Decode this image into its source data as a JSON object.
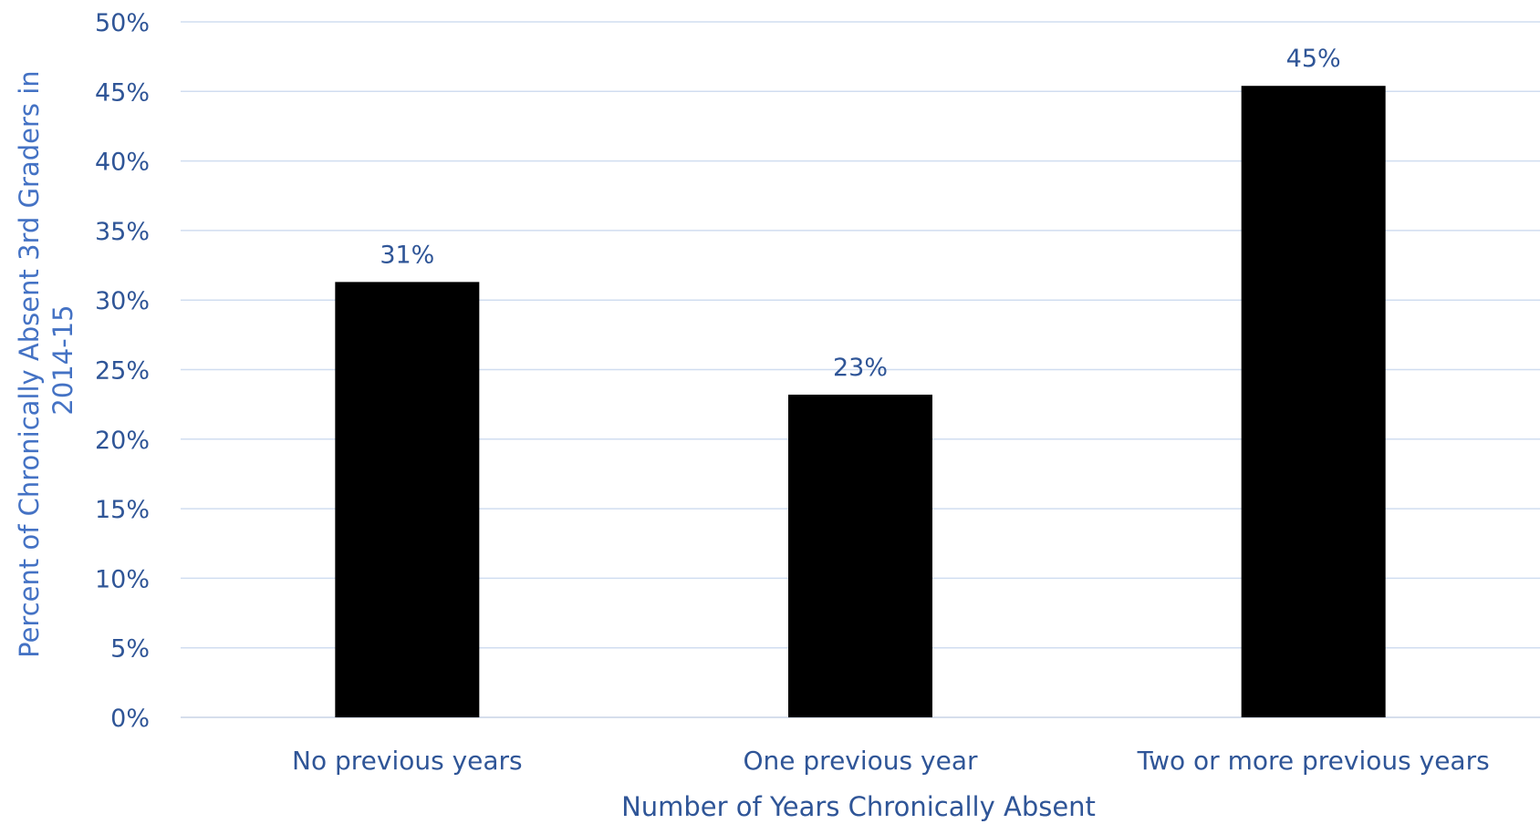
{
  "chart_data": {
    "type": "bar",
    "title": "",
    "categories": [
      "No previous years",
      "One previous year",
      "Two or more previous years"
    ],
    "values": [
      31.3,
      23.2,
      45.4
    ],
    "data_labels": [
      "31%",
      "23%",
      "45%"
    ],
    "xlabel": "Number of Years Chronically Absent",
    "ylabel": "Percent of Chronically Absent 3rd Graders in 2014-15",
    "ylabel_lines": [
      "Percent of Chronically Absent 3rd Graders in",
      "2014-15"
    ],
    "ylim": [
      0,
      50
    ],
    "yticks": [
      0,
      5,
      10,
      15,
      20,
      25,
      30,
      35,
      40,
      45,
      50
    ],
    "ytick_labels": [
      "0%",
      "5%",
      "10%",
      "15%",
      "20%",
      "25%",
      "30%",
      "35%",
      "40%",
      "45%",
      "50%"
    ],
    "grid": true,
    "legend": "none",
    "colors": {
      "bar": "#000000",
      "text": "#2F5597",
      "ylabel": "#4472C4",
      "grid": "#D0DDF0",
      "axis": "#C9D3E6"
    }
  }
}
